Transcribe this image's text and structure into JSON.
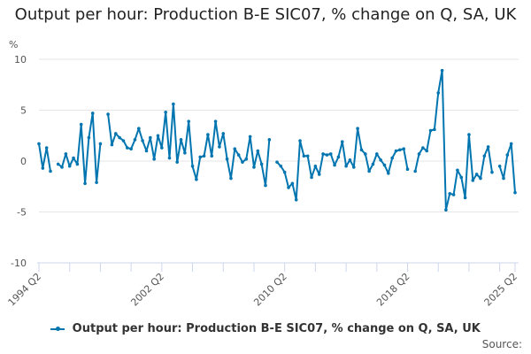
{
  "title": "Output per hour: Production B-E SIC07, % change on Q, SA, UK",
  "unit_label": "%",
  "legend_label": "Output per hour: Production B-E SIC07, % change on Q, SA, UK",
  "source_label": "Source:",
  "series_color": "#0075b0",
  "chart_data": {
    "type": "line",
    "title": "Output per hour: Production B-E SIC07, % change on Q, SA, UK",
    "xlabel": "",
    "ylabel": "%",
    "ylim": [
      -10,
      10
    ],
    "yticks": [
      10,
      5,
      0,
      -5,
      -10
    ],
    "xtick_labels": [
      "1994 Q2",
      "2002 Q2",
      "2010 Q2",
      "2018 Q2",
      "2025 Q2"
    ],
    "grid": true,
    "legend_position": "bottom",
    "x_start": "1994 Q2",
    "x_end": "2025 Q2",
    "series": [
      {
        "name": "Output per hour: Production B-E SIC07, % change on Q, SA, UK",
        "values": [
          1.7,
          -0.7,
          1.3,
          -1.0,
          null,
          -0.3,
          -0.6,
          0.7,
          -0.5,
          0.3,
          -0.3,
          3.6,
          -2.2,
          2.3,
          4.7,
          -2.1,
          1.7,
          null,
          4.6,
          1.6,
          2.7,
          2.3,
          2.0,
          1.3,
          1.2,
          2.1,
          3.2,
          2.0,
          1.0,
          2.3,
          0.2,
          2.5,
          1.3,
          4.8,
          0.3,
          5.6,
          -0.1,
          2.1,
          0.8,
          3.9,
          -0.5,
          -1.8,
          0.4,
          0.5,
          2.6,
          0.5,
          3.9,
          1.4,
          2.7,
          0.2,
          -1.7,
          1.2,
          0.6,
          -0.1,
          0.2,
          2.4,
          -0.6,
          1.0,
          -0.3,
          -2.4,
          2.1,
          null,
          -0.1,
          -0.5,
          -1.1,
          -2.6,
          -2.2,
          -3.8,
          2.0,
          0.5,
          0.5,
          -1.6,
          -0.5,
          -1.3,
          0.7,
          0.6,
          0.7,
          -0.4,
          0.4,
          1.9,
          -0.5,
          0.1,
          -0.6,
          3.2,
          1.1,
          0.7,
          -1.0,
          -0.3,
          0.7,
          0.1,
          -0.4,
          -1.2,
          0.3,
          1.0,
          1.1,
          1.2,
          -0.8,
          null,
          -1.0,
          0.7,
          1.3,
          1.0,
          3.0,
          3.1,
          6.7,
          8.9,
          -4.8,
          -3.2,
          -3.3,
          -0.9,
          -1.6,
          -3.6,
          2.6,
          -1.9,
          -1.3,
          -1.7,
          0.5,
          1.4,
          -1.1,
          null,
          -0.5,
          -1.7,
          0.6,
          1.7,
          -3.1
        ]
      }
    ]
  }
}
